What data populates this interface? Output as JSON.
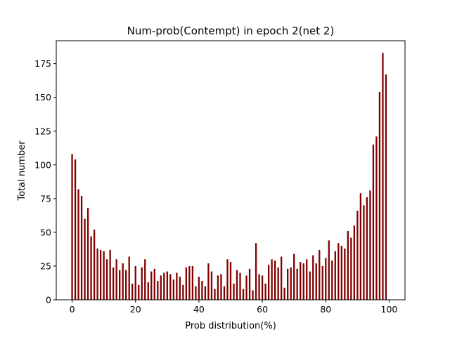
{
  "chart_data": {
    "type": "bar",
    "title": "Num-prob(Contempt) in epoch 2(net 2)",
    "xlabel": "Prob distribution(%)",
    "ylabel": "Total number",
    "xlim": [
      -5,
      105
    ],
    "ylim": [
      0,
      192
    ],
    "xticks": [
      0,
      20,
      40,
      60,
      80,
      100
    ],
    "yticks": [
      0,
      25,
      50,
      75,
      100,
      125,
      150,
      175
    ],
    "bar_color": "#800000",
    "grid": false,
    "x": [
      0,
      1,
      2,
      3,
      4,
      5,
      6,
      7,
      8,
      9,
      10,
      11,
      12,
      13,
      14,
      15,
      16,
      17,
      18,
      19,
      20,
      21,
      22,
      23,
      24,
      25,
      26,
      27,
      28,
      29,
      30,
      31,
      32,
      33,
      34,
      35,
      36,
      37,
      38,
      39,
      40,
      41,
      42,
      43,
      44,
      45,
      46,
      47,
      48,
      49,
      50,
      51,
      52,
      53,
      54,
      55,
      56,
      57,
      58,
      59,
      60,
      61,
      62,
      63,
      64,
      65,
      66,
      67,
      68,
      69,
      70,
      71,
      72,
      73,
      74,
      75,
      76,
      77,
      78,
      79,
      80,
      81,
      82,
      83,
      84,
      85,
      86,
      87,
      88,
      89,
      90,
      91,
      92,
      93,
      94,
      95,
      96,
      97,
      98,
      99
    ],
    "values": [
      108,
      104,
      82,
      77,
      60,
      68,
      47,
      52,
      38,
      37,
      36,
      30,
      37,
      24,
      30,
      22,
      27,
      22,
      32,
      12,
      25,
      11,
      24,
      30,
      13,
      21,
      23,
      14,
      18,
      20,
      21,
      19,
      15,
      20,
      17,
      11,
      24,
      25,
      25,
      10,
      17,
      14,
      10,
      27,
      21,
      8,
      18,
      19,
      10,
      30,
      28,
      12,
      22,
      20,
      8,
      18,
      23,
      7,
      42,
      19,
      18,
      12,
      26,
      30,
      29,
      24,
      32,
      9,
      23,
      24,
      34,
      23,
      28,
      27,
      30,
      21,
      33,
      27,
      37,
      25,
      31,
      44,
      29,
      36,
      42,
      40,
      38,
      51,
      46,
      55,
      66,
      79,
      70,
      76,
      81,
      115,
      121,
      154,
      183,
      167
    ]
  }
}
